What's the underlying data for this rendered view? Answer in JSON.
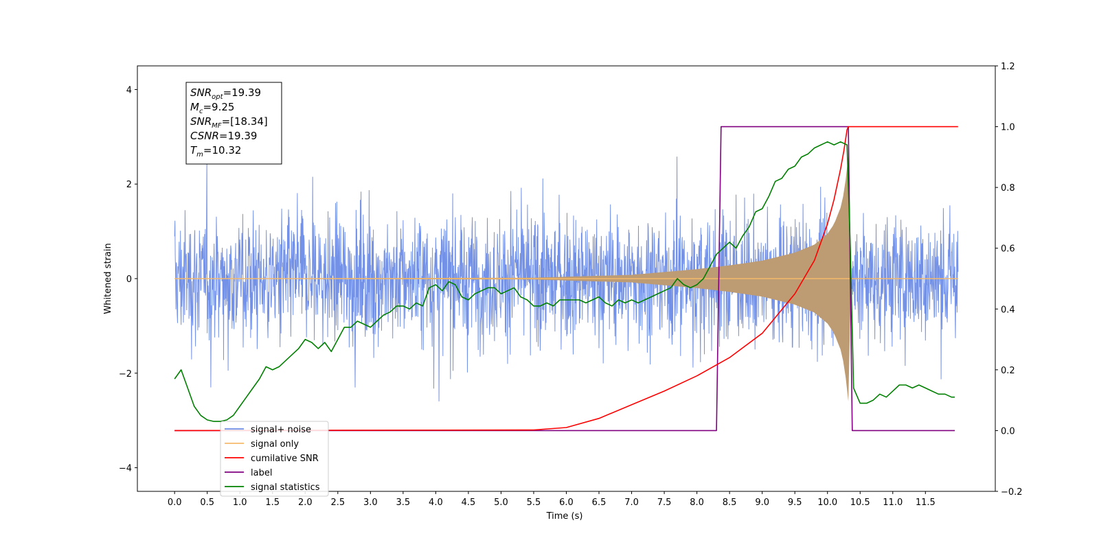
{
  "chart_data": {
    "type": "line",
    "xlabel": "Time (s)",
    "ylabel": "Whitened strain",
    "xlim": [
      -0.57,
      12.57
    ],
    "ylim": [
      -4.5,
      4.5
    ],
    "y2lim": [
      -0.2,
      1.2
    ],
    "x_ticks": [
      "0.0",
      "0.5",
      "1.0",
      "1.5",
      "2.0",
      "2.5",
      "3.0",
      "3.5",
      "4.0",
      "4.5",
      "5.0",
      "5.5",
      "6.0",
      "6.5",
      "7.0",
      "7.5",
      "8.0",
      "8.5",
      "9.0",
      "9.5",
      "10.0",
      "10.5",
      "11.0",
      "11.5"
    ],
    "y_ticks": [
      "4",
      "2",
      "0",
      "−2",
      "−4"
    ],
    "y2_ticks": [
      "1.2",
      "1.0",
      "0.8",
      "0.6",
      "0.4",
      "0.2",
      "0.0",
      "−0.2"
    ],
    "colors": {
      "signal_noise": "#6c8be5",
      "signal_only": "#f5b96b",
      "signal_fill": "#bd9b73",
      "cumulative_snr": "#ff0000",
      "label": "#800080",
      "signal_statistics": "#008000"
    },
    "series": [
      {
        "name": "signal+ noise",
        "axis": "left",
        "x_range": [
          0.0,
          12.0
        ],
        "amplitude_range": [
          -3.8,
          4.1
        ],
        "note_values": "dense noise around 0"
      },
      {
        "name": "signal only",
        "axis": "left",
        "x": [
          0,
          5.5,
          7.0,
          8.0,
          8.5,
          9.0,
          9.5,
          9.8,
          10.0,
          10.1,
          10.2,
          10.25,
          10.3,
          10.32,
          10.36
        ],
        "envelope": [
          0,
          0.02,
          0.08,
          0.2,
          0.28,
          0.38,
          0.55,
          0.72,
          0.95,
          1.15,
          1.5,
          1.8,
          2.3,
          2.6,
          0
        ]
      },
      {
        "name": "cumilative SNR",
        "axis": "right",
        "x": [
          0,
          5.5,
          6.0,
          6.5,
          7.0,
          7.5,
          8.0,
          8.5,
          9.0,
          9.5,
          9.8,
          10.0,
          10.1,
          10.2,
          10.25,
          10.3,
          10.32,
          12.0
        ],
        "values": [
          0,
          0.002,
          0.01,
          0.04,
          0.085,
          0.13,
          0.18,
          0.24,
          0.32,
          0.45,
          0.56,
          0.68,
          0.76,
          0.86,
          0.92,
          0.99,
          1.0,
          1.0
        ]
      },
      {
        "name": "label",
        "axis": "right",
        "x": [
          0,
          8.3,
          8.37,
          10.32,
          10.38,
          11.95
        ],
        "values": [
          0,
          0,
          1,
          1,
          0,
          0
        ]
      },
      {
        "name": "signal statistics",
        "axis": "right",
        "x": [
          0.0,
          0.1,
          0.2,
          0.3,
          0.4,
          0.5,
          0.6,
          0.7,
          0.8,
          0.9,
          1.0,
          1.1,
          1.2,
          1.3,
          1.4,
          1.5,
          1.6,
          1.7,
          1.8,
          1.9,
          2.0,
          2.1,
          2.2,
          2.3,
          2.4,
          2.5,
          2.6,
          2.7,
          2.8,
          2.9,
          3.0,
          3.1,
          3.2,
          3.3,
          3.4,
          3.5,
          3.6,
          3.7,
          3.8,
          3.9,
          4.0,
          4.1,
          4.2,
          4.3,
          4.4,
          4.5,
          4.6,
          4.7,
          4.8,
          4.9,
          5.0,
          5.1,
          5.2,
          5.3,
          5.4,
          5.5,
          5.6,
          5.7,
          5.8,
          5.9,
          6.0,
          6.1,
          6.2,
          6.3,
          6.4,
          6.5,
          6.6,
          6.7,
          6.8,
          6.9,
          7.0,
          7.1,
          7.2,
          7.3,
          7.4,
          7.5,
          7.6,
          7.7,
          7.8,
          7.9,
          8.0,
          8.1,
          8.2,
          8.3,
          8.4,
          8.5,
          8.6,
          8.7,
          8.8,
          8.9,
          9.0,
          9.1,
          9.2,
          9.3,
          9.4,
          9.5,
          9.6,
          9.7,
          9.8,
          9.9,
          10.0,
          10.1,
          10.2,
          10.3,
          10.35,
          10.4,
          10.5,
          10.6,
          10.7,
          10.8,
          10.9,
          11.0,
          11.1,
          11.2,
          11.3,
          11.4,
          11.5,
          11.6,
          11.7,
          11.8,
          11.9,
          11.95
        ],
        "values": [
          0.17,
          0.2,
          0.14,
          0.08,
          0.05,
          0.035,
          0.03,
          0.03,
          0.035,
          0.05,
          0.08,
          0.11,
          0.14,
          0.17,
          0.21,
          0.2,
          0.21,
          0.23,
          0.25,
          0.27,
          0.3,
          0.29,
          0.27,
          0.29,
          0.26,
          0.3,
          0.34,
          0.34,
          0.36,
          0.35,
          0.34,
          0.36,
          0.38,
          0.39,
          0.41,
          0.41,
          0.4,
          0.42,
          0.41,
          0.47,
          0.48,
          0.46,
          0.49,
          0.48,
          0.44,
          0.43,
          0.45,
          0.46,
          0.47,
          0.47,
          0.45,
          0.46,
          0.47,
          0.44,
          0.43,
          0.41,
          0.41,
          0.42,
          0.41,
          0.43,
          0.43,
          0.43,
          0.43,
          0.42,
          0.43,
          0.44,
          0.42,
          0.41,
          0.43,
          0.42,
          0.43,
          0.42,
          0.43,
          0.44,
          0.45,
          0.46,
          0.47,
          0.5,
          0.48,
          0.47,
          0.48,
          0.5,
          0.54,
          0.58,
          0.6,
          0.62,
          0.6,
          0.64,
          0.67,
          0.72,
          0.73,
          0.77,
          0.82,
          0.83,
          0.86,
          0.87,
          0.9,
          0.91,
          0.93,
          0.94,
          0.95,
          0.94,
          0.95,
          0.94,
          0.6,
          0.14,
          0.09,
          0.09,
          0.1,
          0.12,
          0.11,
          0.13,
          0.15,
          0.15,
          0.14,
          0.15,
          0.14,
          0.13,
          0.12,
          0.12,
          0.11,
          0.11
        ]
      }
    ],
    "legend": {
      "placement": "lower-left",
      "entries": [
        "signal+ noise",
        "signal only",
        "cumilative SNR",
        "label",
        "signal statistics"
      ]
    },
    "annotation_box": {
      "lines": [
        {
          "main": "SNR",
          "sub": "opt",
          "value": "=19.39"
        },
        {
          "main": "M",
          "sub": "c",
          "value": "=9.25"
        },
        {
          "main": "SNR",
          "sub": "MF",
          "value": "=[18.34]"
        },
        {
          "main": "CSNR",
          "sub": "",
          "value": "=19.39"
        },
        {
          "main": "T",
          "sub": "m",
          "value": "=10.32"
        }
      ]
    }
  }
}
